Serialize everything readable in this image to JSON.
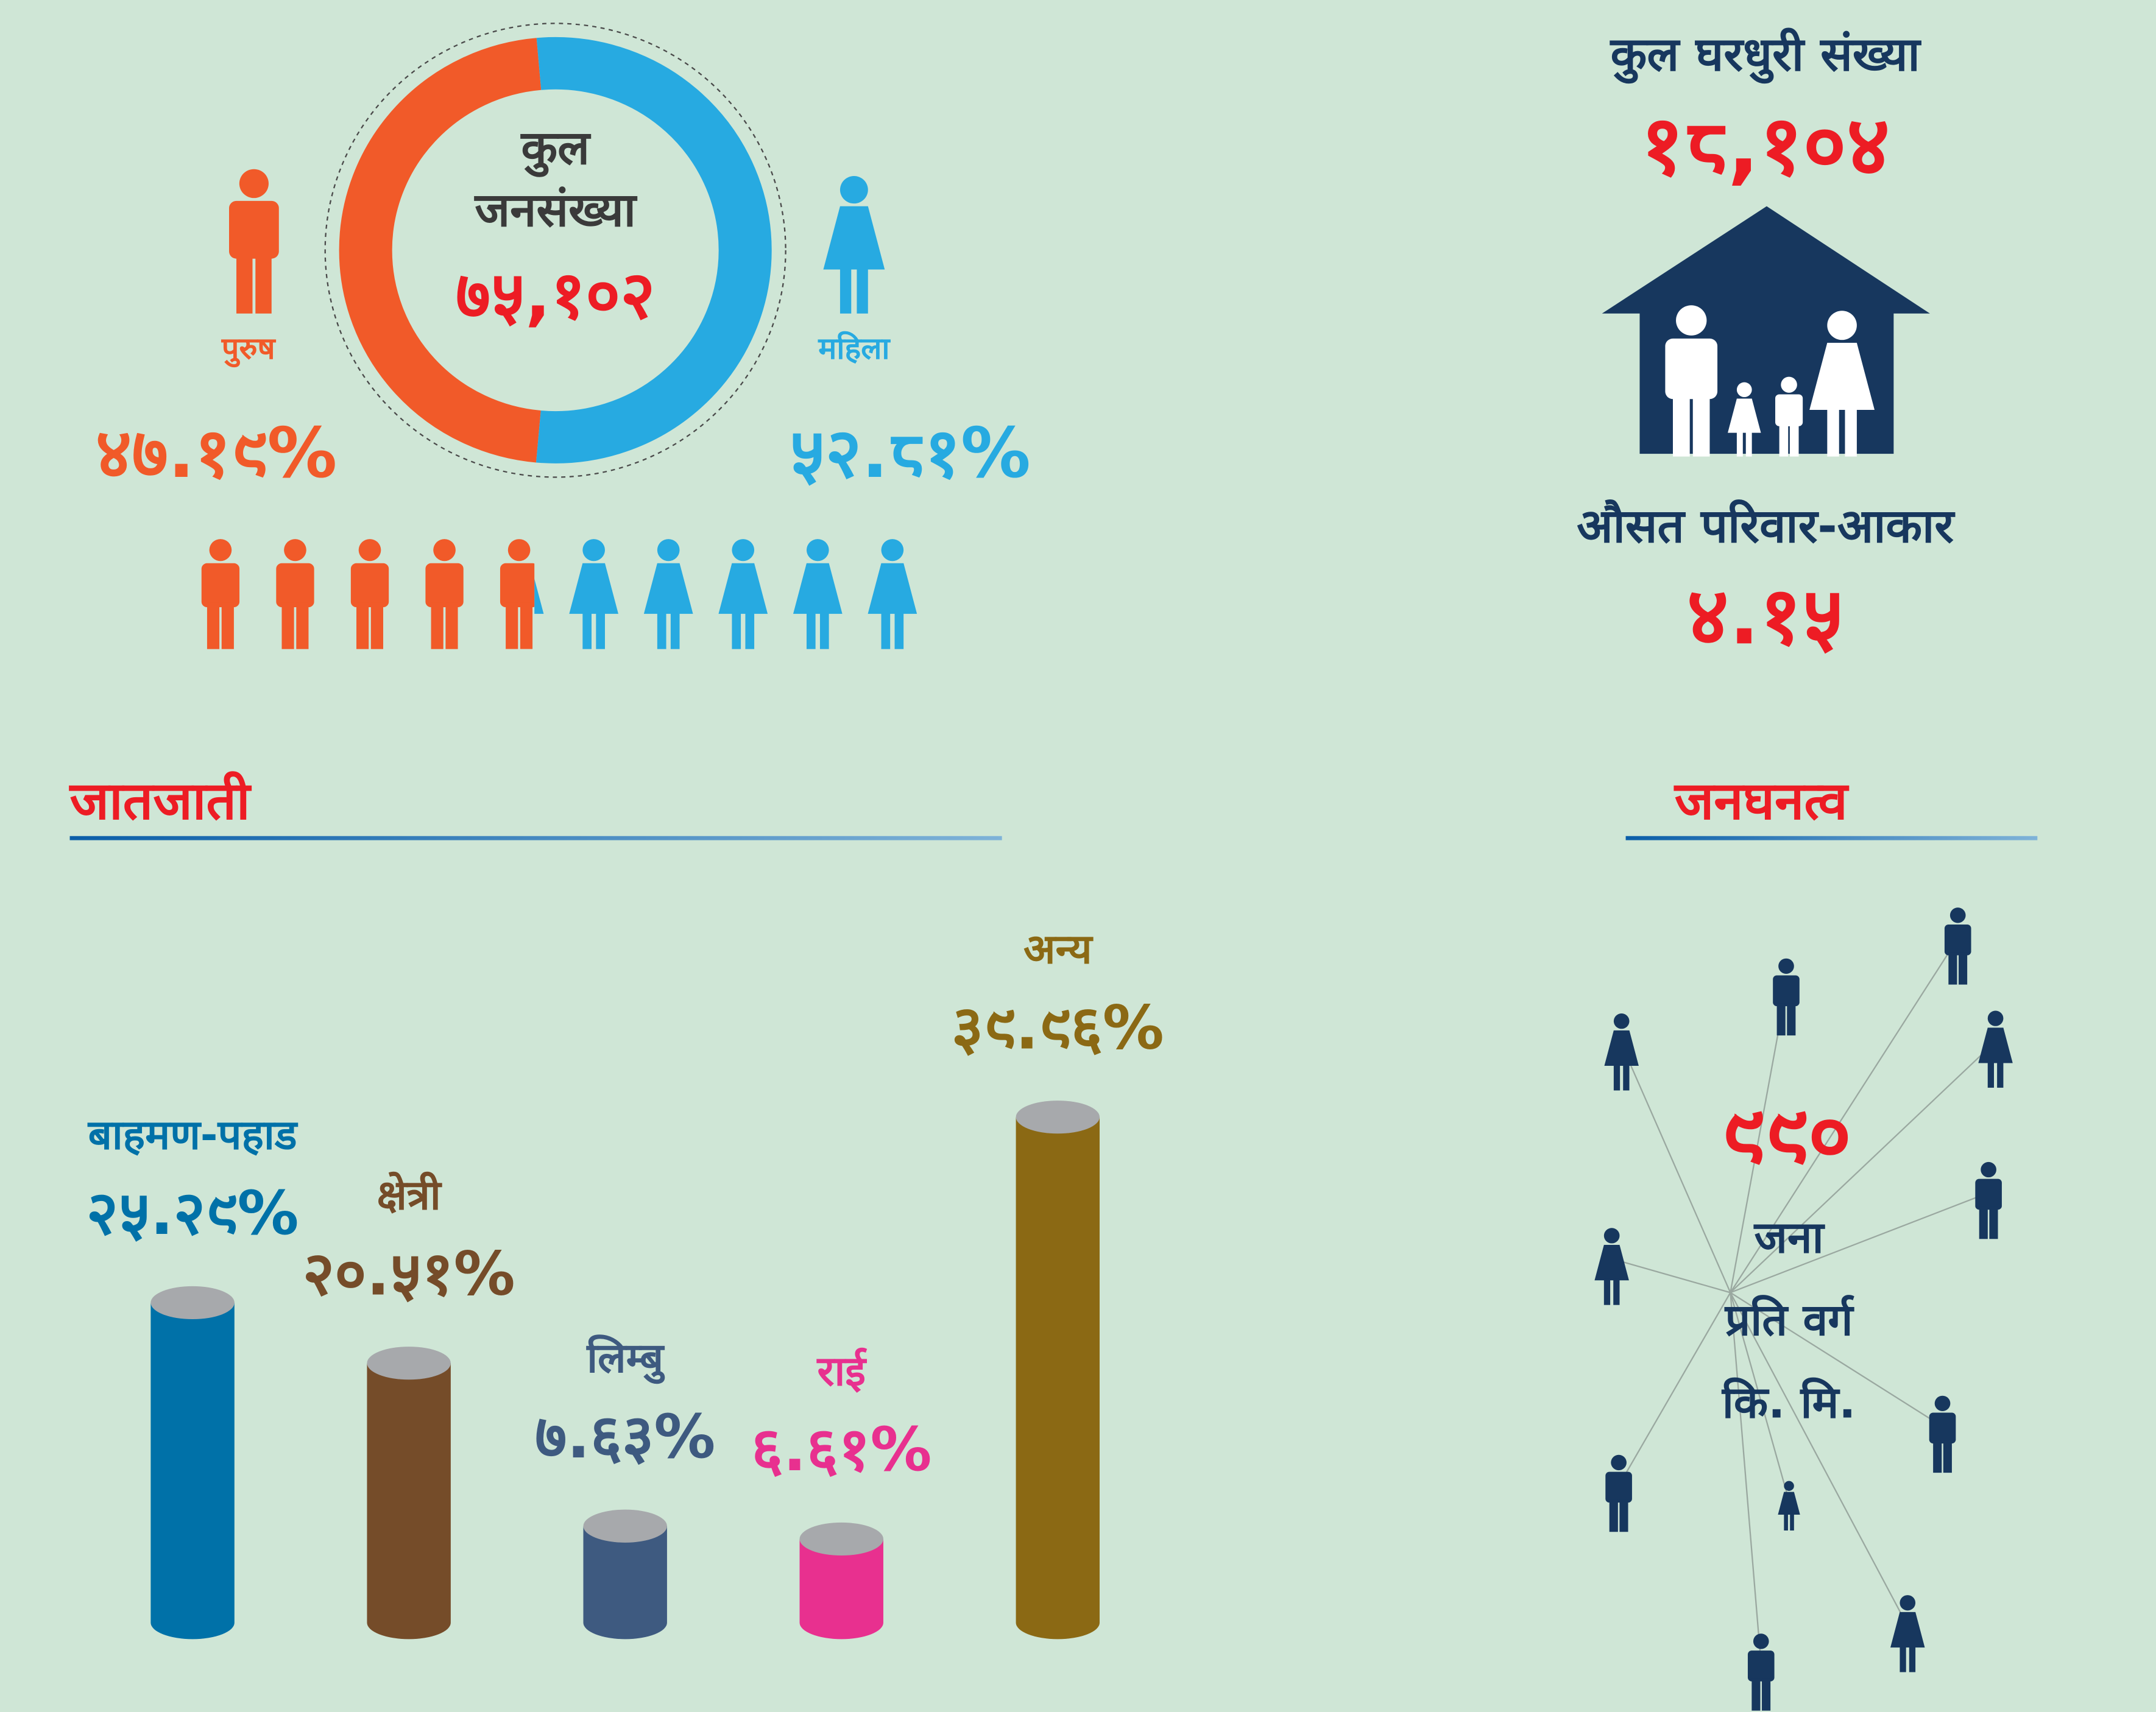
{
  "chart_data": [
    {
      "type": "pie",
      "title": "कुल जनसंख्या",
      "total": "७५,१०२",
      "categories": [
        "पुरुष",
        "महिला"
      ],
      "values": [
        47.19,
        52.81
      ],
      "value_labels": [
        "४७.१९%",
        "५२.८१%"
      ],
      "colors": [
        "#f15a29",
        "#27aae1"
      ]
    },
    {
      "type": "bar",
      "title": "जातजाती",
      "categories": [
        "बाहमण-पहाड",
        "क्षेत्री",
        "लिम्बु",
        "राई",
        "अन्य"
      ],
      "values": [
        25.29,
        20.51,
        7.63,
        6.61,
        39.96
      ],
      "value_labels": [
        "२५.२९%",
        "२०.५१%",
        "७.६३%",
        "६.६१%",
        "३९.९६%"
      ],
      "colors": [
        "#0071a8",
        "#754c29",
        "#3e5a80",
        "#e8308f",
        "#8b6914"
      ]
    }
  ],
  "households": {
    "title": "कुल घरधुरी संख्या",
    "value": "१८,१०४",
    "family_size_title": "औसत परिवार-आकार",
    "family_size": "४.१५"
  },
  "density": {
    "title": "जनघनत्व",
    "value": "९९०",
    "unit_lines": [
      "जना",
      "प्रति वर्ग",
      "कि. मि."
    ]
  }
}
